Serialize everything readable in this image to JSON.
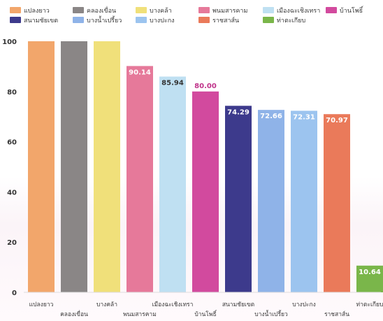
{
  "chart_data": {
    "type": "bar",
    "title": "",
    "xlabel": "",
    "ylabel": "",
    "ylim": [
      0,
      100
    ],
    "yticks": [
      0,
      20,
      40,
      60,
      80,
      100
    ],
    "grid": false,
    "legend_position": "top",
    "categories": [
      "แปลงยาว",
      "คลองเขื่อน",
      "บางคล้า",
      "พนมสารคาม",
      "เมืองฉะเชิงเทรา",
      "บ้านโพธิ์",
      "สนามชัยเขต",
      "บางน้ำเปรี้ยว",
      "บางปะกง",
      "ราชสาส์น",
      "ท่าตะเกียบ"
    ],
    "values": [
      100,
      100,
      100,
      90.14,
      85.94,
      80.0,
      74.29,
      72.66,
      72.31,
      70.97,
      10.64
    ],
    "value_labels": [
      "",
      "",
      "",
      "90.14",
      "85.94",
      "80.00",
      "74.29",
      "72.66",
      "72.31",
      "70.97",
      "10.64"
    ],
    "colors": [
      "#f2a66b",
      "#8a8686",
      "#f0e07a",
      "#e6799a",
      "#bfe0f2",
      "#d24a9e",
      "#3d3a8c",
      "#8fb3e8",
      "#9cc4ef",
      "#ea7a5a",
      "#7ab64a"
    ],
    "value_label_colors": [
      "#ffffff",
      "#ffffff",
      "#ffffff",
      "#ffffff",
      "#333333",
      "#c0338a",
      "#ffffff",
      "#ffffff",
      "#ffffff",
      "#ffffff",
      "#ffffff"
    ]
  }
}
